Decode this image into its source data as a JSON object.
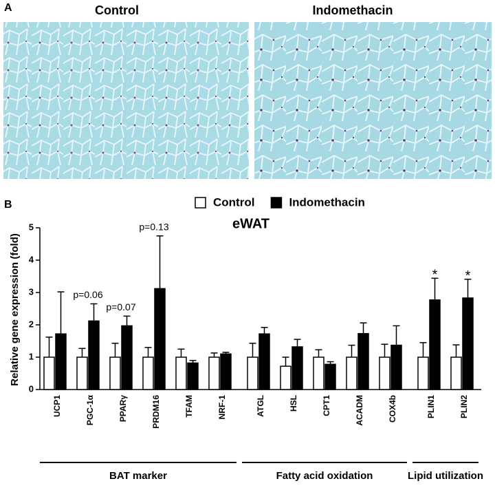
{
  "figure": {
    "panel_a_label": "A",
    "image_titles": [
      "Control",
      "Indomethacin"
    ],
    "panel_b_label": "B"
  },
  "chart_data": {
    "type": "bar",
    "title": "eWAT",
    "y_label": "Relative gene expression (fold)",
    "categories": [
      "UCP1",
      "PGC-1α",
      "PPARγ",
      "PRDM16",
      "TFAM",
      "NRF-1",
      "ATGL",
      "HSL",
      "CPT1",
      "ACADM",
      "COX4b",
      "PLIN1",
      "PLIN2"
    ],
    "series": [
      {
        "name": "Control",
        "color": "#ffffff",
        "values": [
          1,
          1,
          1,
          1,
          1,
          1,
          1,
          0.72,
          1,
          1,
          1,
          1,
          1
        ],
        "errors": [
          0.62,
          0.27,
          0.43,
          0.3,
          0.25,
          0.13,
          0.43,
          0.28,
          0.23,
          0.37,
          0.4,
          0.45,
          0.38
        ]
      },
      {
        "name": "Indomethacin",
        "color": "#000000",
        "values": [
          1.72,
          2.12,
          1.97,
          3.12,
          0.82,
          1.1,
          1.72,
          1.32,
          0.78,
          1.73,
          1.37,
          2.77,
          2.83
        ],
        "errors": [
          1.3,
          0.53,
          0.3,
          1.63,
          0.08,
          0.05,
          0.2,
          0.23,
          0.08,
          0.33,
          0.6,
          0.67,
          0.58
        ]
      }
    ],
    "annotations": [
      null,
      "p=0.06",
      "p=0.07",
      "p=0.13",
      null,
      null,
      null,
      null,
      null,
      null,
      null,
      "*",
      "*"
    ],
    "groups": [
      {
        "label": "BAT marker",
        "size": 6
      },
      {
        "label": "Fatty acid oxidation",
        "size": 5
      },
      {
        "label": "Lipid utilization",
        "size": 2
      }
    ],
    "ylim": [
      0,
      5
    ],
    "yticks": [
      0,
      1,
      2,
      3,
      4,
      5
    ],
    "grid": false,
    "legend": "top"
  }
}
